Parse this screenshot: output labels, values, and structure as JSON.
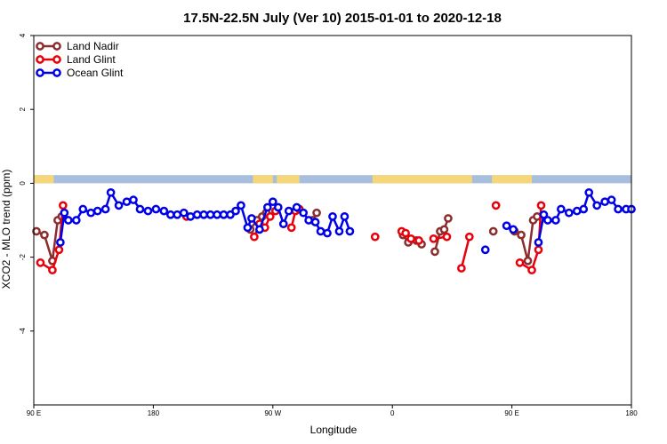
{
  "chart_data": {
    "type": "line",
    "title": "17.5N-22.5N July (Ver 10)   2015-01-01 to 2020-12-18",
    "xlabel": "Longitude",
    "ylabel": "XCO2 - MLO trend (ppm)",
    "xlim": [
      0,
      450
    ],
    "ylim": [
      -6,
      4
    ],
    "x_ticks": [
      {
        "value": 0,
        "label": "90 E"
      },
      {
        "value": 90,
        "label": "180"
      },
      {
        "value": 180,
        "label": "90 W"
      },
      {
        "value": 270,
        "label": "0"
      },
      {
        "value": 360,
        "label": "90 E"
      },
      {
        "value": 450,
        "label": "180"
      }
    ],
    "y_ticks": [
      {
        "value": 4,
        "label": "4"
      },
      {
        "value": 2,
        "label": "2"
      },
      {
        "value": 0,
        "label": "0"
      },
      {
        "value": -2,
        "label": "-2"
      },
      {
        "value": -4,
        "label": "-4"
      }
    ],
    "legend_position": "top-left",
    "land_ocean_strip": {
      "y_range": [
        0,
        0.22
      ],
      "ocean_color": "#a7bfdd",
      "land_color": "#f5d77a",
      "land_segments": [
        [
          0,
          15
        ],
        [
          165,
          180
        ],
        [
          183,
          200
        ],
        [
          255,
          330
        ],
        [
          345,
          375
        ]
      ]
    },
    "series": [
      {
        "name": "Land Nadir",
        "color": "#8b2d2d",
        "segments": [
          [
            [
              2,
              -1.3
            ],
            [
              8,
              -1.4
            ],
            [
              14,
              -2.1
            ],
            [
              18,
              -1.0
            ],
            [
              21,
              -0.9
            ]
          ],
          [
            [
              163,
              -1.25
            ],
            [
              168,
              -1.0
            ],
            [
              172,
              -0.9
            ],
            [
              175,
              -0.8
            ]
          ],
          [
            [
              210,
              -1.0
            ],
            [
              213,
              -0.8
            ]
          ],
          [
            [
              278,
              -1.4
            ],
            [
              282,
              -1.6
            ],
            [
              288,
              -1.55
            ],
            [
              292,
              -1.65
            ]
          ],
          [
            [
              302,
              -1.85
            ],
            [
              306,
              -1.3
            ],
            [
              309,
              -1.25
            ],
            [
              312,
              -0.95
            ]
          ],
          [
            [
              346,
              -1.3
            ]
          ],
          [
            [
              362,
              -1.3
            ],
            [
              367,
              -1.4
            ],
            [
              372,
              -2.1
            ],
            [
              376,
              -1.0
            ],
            [
              379,
              -0.9
            ]
          ]
        ]
      },
      {
        "name": "Land Glint",
        "color": "#e8000b",
        "segments": [
          [
            [
              5,
              -2.15
            ],
            [
              14,
              -2.35
            ],
            [
              19,
              -1.8
            ],
            [
              22,
              -0.6
            ]
          ],
          [
            [
              115,
              -0.9
            ]
          ],
          [
            [
              166,
              -1.45
            ],
            [
              170,
              -1.1
            ],
            [
              174,
              -1.2
            ],
            [
              178,
              -0.9
            ],
            [
              182,
              -0.75
            ]
          ],
          [
            [
              194,
              -1.2
            ],
            [
              197,
              -0.75
            ],
            [
              200,
              -0.7
            ]
          ],
          [
            [
              257,
              -1.45
            ]
          ],
          [
            [
              277,
              -1.3
            ],
            [
              280,
              -1.35
            ],
            [
              284,
              -1.5
            ],
            [
              290,
              -1.55
            ]
          ],
          [
            [
              301,
              -1.5
            ],
            [
              311,
              -1.45
            ]
          ],
          [
            [
              322,
              -2.3
            ],
            [
              328,
              -1.45
            ]
          ],
          [
            [
              348,
              -0.6
            ]
          ],
          [
            [
              366,
              -2.15
            ],
            [
              375,
              -2.35
            ],
            [
              380,
              -1.8
            ],
            [
              382,
              -0.6
            ]
          ]
        ]
      },
      {
        "name": "Ocean Glint",
        "color": "#0000e6",
        "segments": [
          [
            [
              20,
              -1.6
            ],
            [
              23,
              -0.8
            ],
            [
              26,
              -1.0
            ],
            [
              32,
              -1.0
            ],
            [
              37,
              -0.7
            ],
            [
              43,
              -0.8
            ],
            [
              48,
              -0.75
            ],
            [
              54,
              -0.7
            ],
            [
              58,
              -0.25
            ],
            [
              64,
              -0.6
            ],
            [
              70,
              -0.5
            ],
            [
              75,
              -0.45
            ],
            [
              80,
              -0.7
            ],
            [
              86,
              -0.75
            ],
            [
              92,
              -0.7
            ],
            [
              98,
              -0.75
            ],
            [
              103,
              -0.85
            ],
            [
              108,
              -0.85
            ],
            [
              113,
              -0.8
            ],
            [
              118,
              -0.9
            ],
            [
              123,
              -0.85
            ],
            [
              128,
              -0.85
            ],
            [
              133,
              -0.85
            ],
            [
              138,
              -0.85
            ],
            [
              143,
              -0.85
            ],
            [
              148,
              -0.85
            ],
            [
              152,
              -0.75
            ],
            [
              156,
              -0.6
            ],
            [
              161,
              -1.2
            ],
            [
              164,
              -0.95
            ],
            [
              170,
              -1.25
            ],
            [
              176,
              -0.65
            ],
            [
              180,
              -0.5
            ],
            [
              184,
              -0.65
            ],
            [
              188,
              -1.1
            ],
            [
              192,
              -0.75
            ],
            [
              198,
              -0.65
            ],
            [
              203,
              -0.8
            ],
            [
              207,
              -1.0
            ],
            [
              212,
              -1.05
            ],
            [
              216,
              -1.3
            ],
            [
              221,
              -1.35
            ],
            [
              225,
              -0.9
            ],
            [
              230,
              -1.3
            ],
            [
              234,
              -0.9
            ],
            [
              238,
              -1.3
            ]
          ],
          [
            [
              340,
              -1.8
            ]
          ],
          [
            [
              356,
              -1.15
            ],
            [
              361,
              -1.25
            ]
          ],
          [
            [
              380,
              -1.6
            ],
            [
              384,
              -0.85
            ],
            [
              387,
              -1.0
            ],
            [
              393,
              -1.0
            ],
            [
              397,
              -0.7
            ],
            [
              403,
              -0.8
            ],
            [
              409,
              -0.75
            ],
            [
              414,
              -0.7
            ],
            [
              418,
              -0.25
            ],
            [
              424,
              -0.6
            ],
            [
              430,
              -0.5
            ],
            [
              435,
              -0.45
            ],
            [
              440,
              -0.7
            ],
            [
              446,
              -0.7
            ],
            [
              450,
              -0.7
            ]
          ]
        ]
      }
    ]
  }
}
